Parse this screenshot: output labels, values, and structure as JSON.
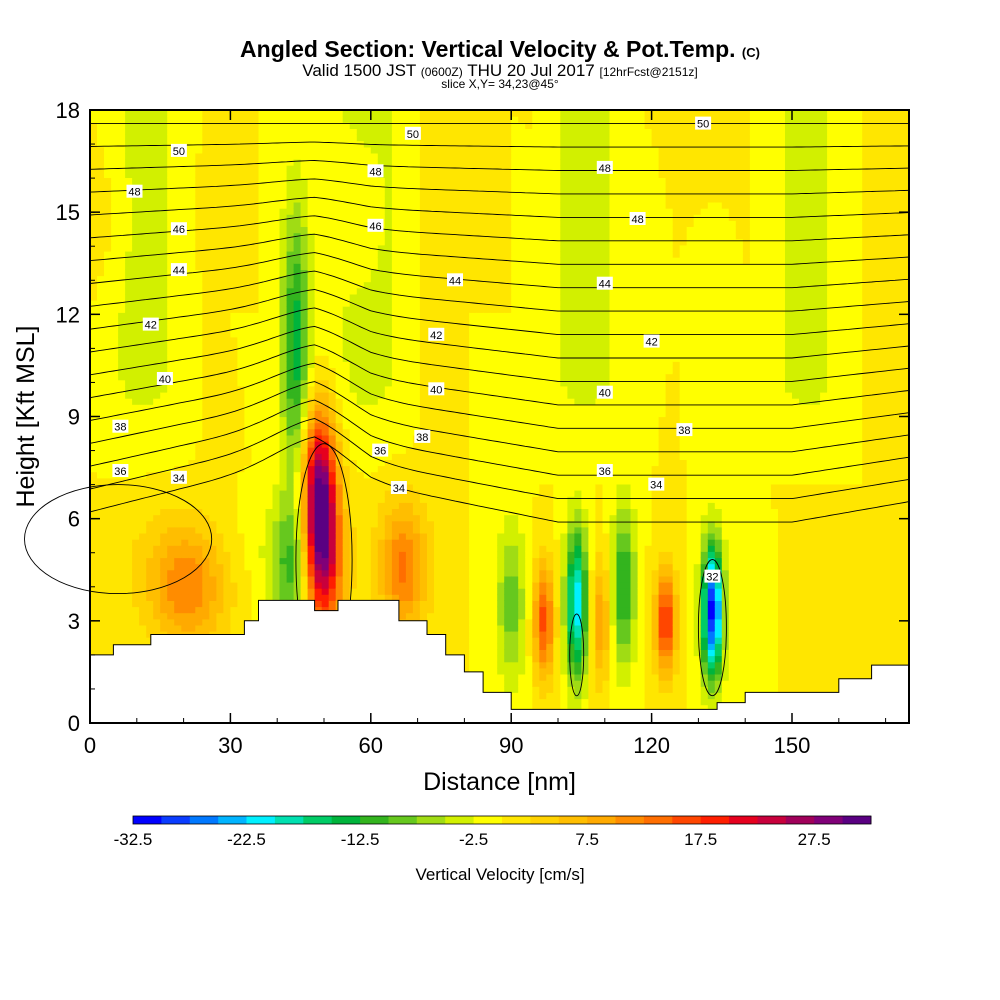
{
  "header": {
    "title": "Angled Section: Vertical Velocity & Pot.Temp.",
    "title_suffix": "(C)",
    "valid_prefix": "Valid 1500 JST",
    "valid_utc": "(0600Z)",
    "valid_date": "THU 20 Jul 2017",
    "forecast": "[12hrFcst@2151z]",
    "slice": "slice X,Y= 34,23@45°"
  },
  "chart_data": {
    "type": "heatmap",
    "xlabel": "Distance [nm]",
    "ylabel": "Height [Kft MSL]",
    "xlim": [
      0,
      175
    ],
    "ylim": [
      0,
      18
    ],
    "xticks": [
      0,
      30,
      60,
      90,
      120,
      150
    ],
    "yticks": [
      0,
      3,
      6,
      9,
      12,
      15,
      18
    ],
    "colorbar": {
      "label": "Vertical Velocity [cm/s]",
      "min": -32.5,
      "max": 32.5,
      "step": 2.5,
      "tick_labels": [
        "-32.5",
        "-22.5",
        "-12.5",
        "-2.5",
        "7.5",
        "17.5",
        "27.5"
      ],
      "colors": [
        "#0000ff",
        "#0a3cff",
        "#0078ff",
        "#00b4ff",
        "#00f0ff",
        "#00e0b0",
        "#00cc66",
        "#00b43c",
        "#33b41e",
        "#66c81e",
        "#a0dc14",
        "#d2f000",
        "#ffff00",
        "#ffe600",
        "#ffd200",
        "#ffbe00",
        "#ffaa00",
        "#ff8c00",
        "#ff6e00",
        "#ff4600",
        "#ff1e00",
        "#e6001e",
        "#c8003c",
        "#a0005a",
        "#800078",
        "#5a0082"
      ]
    },
    "terrain": [
      [
        0,
        2.0
      ],
      [
        5,
        2.3
      ],
      [
        13,
        2.6
      ],
      [
        30,
        2.6
      ],
      [
        33,
        3.0
      ],
      [
        36,
        3.6
      ],
      [
        46,
        3.6
      ],
      [
        48,
        3.3
      ],
      [
        53,
        3.6
      ],
      [
        62,
        3.6
      ],
      [
        66,
        3.0
      ],
      [
        72,
        2.6
      ],
      [
        76,
        2.0
      ],
      [
        80,
        1.5
      ],
      [
        84,
        0.9
      ],
      [
        90,
        0.4
      ],
      [
        130,
        0.4
      ],
      [
        134,
        0.6
      ],
      [
        140,
        0.9
      ],
      [
        150,
        0.9
      ],
      [
        160,
        1.3
      ],
      [
        167,
        1.7
      ],
      [
        175,
        1.7
      ]
    ],
    "theta_contours": {
      "levels": [
        34,
        35,
        36,
        37,
        38,
        39,
        40,
        41,
        42,
        43,
        44,
        45,
        46,
        47,
        48,
        49,
        50,
        51
      ],
      "anchor_heights_kft": {
        "x": [
          0,
          20,
          35,
          48,
          60,
          75,
          100,
          150,
          175
        ],
        "h34": [
          6.2,
          6.9,
          7.4,
          7.8,
          7.0,
          6.6,
          5.9,
          5.9,
          6.5
        ]
      },
      "labels": [
        {
          "text": "50",
          "x": 19,
          "y": 16.8
        },
        {
          "text": "48",
          "x": 9.5,
          "y": 15.6
        },
        {
          "text": "46",
          "x": 19,
          "y": 14.5
        },
        {
          "text": "44",
          "x": 19,
          "y": 13.3
        },
        {
          "text": "42",
          "x": 13,
          "y": 11.7
        },
        {
          "text": "40",
          "x": 16,
          "y": 10.1
        },
        {
          "text": "38",
          "x": 6.5,
          "y": 8.7
        },
        {
          "text": "36",
          "x": 6.5,
          "y": 7.4
        },
        {
          "text": "34",
          "x": 19,
          "y": 7.2
        },
        {
          "text": "50",
          "x": 69,
          "y": 17.3
        },
        {
          "text": "48",
          "x": 61,
          "y": 16.2
        },
        {
          "text": "46",
          "x": 61,
          "y": 14.6
        },
        {
          "text": "44",
          "x": 78,
          "y": 13.0
        },
        {
          "text": "42",
          "x": 74,
          "y": 11.4
        },
        {
          "text": "40",
          "x": 74,
          "y": 9.8
        },
        {
          "text": "38",
          "x": 71,
          "y": 8.4
        },
        {
          "text": "36",
          "x": 62,
          "y": 8.0
        },
        {
          "text": "34",
          "x": 66,
          "y": 6.9
        },
        {
          "text": "50",
          "x": 131,
          "y": 17.6
        },
        {
          "text": "48",
          "x": 110,
          "y": 16.3
        },
        {
          "text": "48",
          "x": 117,
          "y": 14.8
        },
        {
          "text": "44",
          "x": 110,
          "y": 12.9
        },
        {
          "text": "42",
          "x": 120,
          "y": 11.2
        },
        {
          "text": "40",
          "x": 110,
          "y": 9.7
        },
        {
          "text": "38",
          "x": 127,
          "y": 8.6
        },
        {
          "text": "36",
          "x": 110,
          "y": 7.4
        },
        {
          "text": "34",
          "x": 121,
          "y": 7.0
        },
        {
          "text": "32",
          "x": 133,
          "y": 4.3
        }
      ]
    },
    "velocity_features": [
      {
        "kind": "updraft",
        "x": 49,
        "y": 6.8,
        "peak": 29,
        "sx": 2.6,
        "sy": 1.7
      },
      {
        "kind": "updraft",
        "x": 50,
        "y": 4.5,
        "peak": 18,
        "sx": 3,
        "sy": 1.5
      },
      {
        "kind": "updraft",
        "x": 21,
        "y": 4,
        "peak": 12,
        "sx": 6,
        "sy": 1.3
      },
      {
        "kind": "updraft",
        "x": 67,
        "y": 4.5,
        "peak": 12,
        "sx": 3.5,
        "sy": 1.4
      },
      {
        "kind": "updraft",
        "x": 97,
        "y": 3,
        "peak": 16,
        "sx": 1.6,
        "sy": 1.2
      },
      {
        "kind": "updraft",
        "x": 109,
        "y": 3,
        "peak": 10,
        "sx": 1.6,
        "sy": 1.3
      },
      {
        "kind": "updraft",
        "x": 123,
        "y": 3,
        "peak": 18,
        "sx": 1.6,
        "sy": 1.1
      },
      {
        "kind": "downdraft",
        "x": 104,
        "y": 3.5,
        "peak": -22,
        "sx": 1.7,
        "sy": 1.6
      },
      {
        "kind": "downdraft",
        "x": 114,
        "y": 4,
        "peak": -13,
        "sx": 1.8,
        "sy": 1.7
      },
      {
        "kind": "downdraft",
        "x": 133,
        "y": 3.3,
        "peak": -31,
        "sx": 1.6,
        "sy": 1.4
      },
      {
        "kind": "downdraft",
        "x": 90,
        "y": 3.5,
        "peak": -9,
        "sx": 2.2,
        "sy": 1.7
      },
      {
        "kind": "downdraft",
        "x": 43,
        "y": 4.5,
        "peak": -10,
        "sx": 3.2,
        "sy": 1.5
      },
      {
        "kind": "downdraft",
        "x": 44,
        "y": 11,
        "peak": -14,
        "sx": 2.2,
        "sy": 3.0
      }
    ]
  }
}
